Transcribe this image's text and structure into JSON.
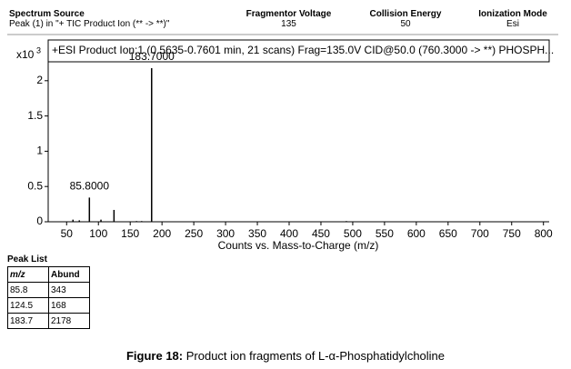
{
  "header": {
    "columns": [
      {
        "title": "Spectrum Source",
        "value": "Peak (1) in \"+ TIC Product Ion (** -> **)\""
      },
      {
        "title": "Fragmentor Voltage",
        "value": 135
      },
      {
        "title": "Collision Energy",
        "value": 50
      },
      {
        "title": "Ionization Mode",
        "value": "Esi"
      }
    ]
  },
  "chart_data": {
    "type": "spectrum",
    "title": "+ESI Product Ion:1 (0.5635-0.7601 min, 21 scans) Frag=135.0V CID@50.0 (760.3000 -> **) PHOSPH...",
    "x_label": "Counts vs. Mass-to-Charge (m/z)",
    "y_label": "x10",
    "y_label_exponent": "3",
    "color": "#000000",
    "x": [
      60,
      70,
      85.8,
      104,
      124.5,
      160,
      168,
      183.7,
      490,
      760
    ],
    "values": [
      0.03,
      0.02,
      0.343,
      0.03,
      0.168,
      0.01,
      0.01,
      2.178,
      0.01,
      0.005
    ],
    "x_labels": [
      null,
      null,
      "85.8000",
      null,
      null,
      null,
      null,
      "183.7000",
      null,
      null
    ],
    "xlim": [
      21,
      809
    ],
    "ylim": [
      0,
      2.5
    ],
    "xticks": [
      50,
      100,
      150,
      200,
      250,
      300,
      350,
      400,
      450,
      500,
      550,
      600,
      650,
      700,
      750,
      800
    ],
    "yticks": [
      0,
      0.5,
      1,
      1.5,
      2
    ]
  },
  "peak_list": {
    "title": "Peak List",
    "columns": [
      "m/z",
      "Abund"
    ],
    "rows": [
      [
        85.8,
        343
      ],
      [
        124.5,
        168
      ],
      [
        183.7,
        2178
      ]
    ]
  },
  "caption": {
    "label": "Figure 18:",
    "text": "Product ion fragments of L-α-Phosphatidylcholine"
  }
}
